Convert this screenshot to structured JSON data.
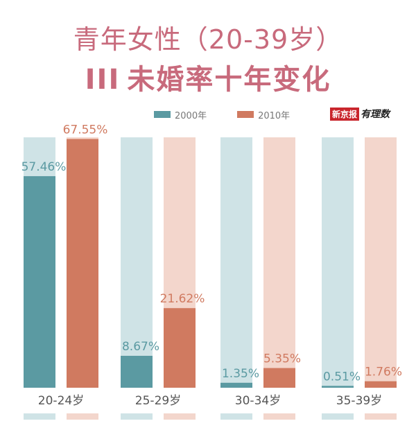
{
  "title_line1": "青年女性（20-39岁）",
  "title_line2_mark": "III",
  "title_line2": "未婚率十年变化",
  "brand": {
    "name": "新京报",
    "sub": "有理数"
  },
  "colors": {
    "s2000": "#5b9aa2",
    "s2000_track": "#cfe3e6",
    "s2010": "#d07a60",
    "s2010_track": "#f3d6cc",
    "title": "#c86a7c",
    "label_2000": "#5b9aa2",
    "label_2010": "#d07a60"
  },
  "chart_data": {
    "type": "bar",
    "categories": [
      "20-24岁",
      "25-29岁",
      "30-34岁",
      "35-39岁"
    ],
    "series": [
      {
        "name": "2000年",
        "values": [
          57.46,
          8.67,
          1.35,
          0.51
        ],
        "labels": [
          "57.46%",
          "8.67%",
          "1.35%",
          "0.51%"
        ]
      },
      {
        "name": "2010年",
        "values": [
          67.55,
          21.62,
          5.35,
          1.76
        ],
        "labels": [
          "67.55%",
          "21.62%",
          "5.35%",
          "1.76%"
        ]
      }
    ],
    "ylim": [
      0,
      68
    ],
    "legend": "top",
    "grid": false
  }
}
